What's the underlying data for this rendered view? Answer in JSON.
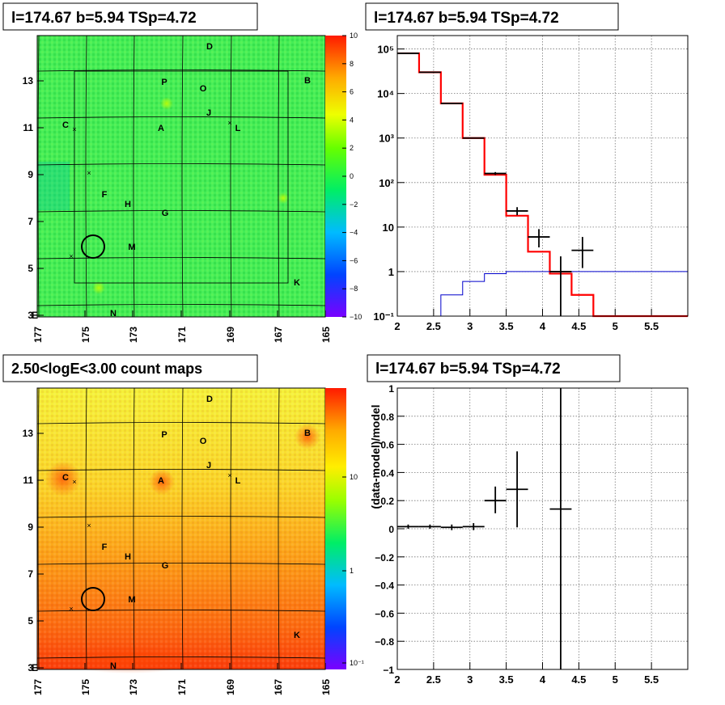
{
  "panels": {
    "tl_title": "l=174.67 b=5.94 TSp=4.72",
    "tr_title": "l=174.67 b=5.94 TSp=4.72",
    "bl_title": "2.50<logE<3.00 count maps",
    "br_title": "l=174.67 b=5.94 TSp=4.72"
  },
  "colors": {
    "data": "#000000",
    "model_total": "#ff0000",
    "model_source": "#0000cc",
    "grid": "#555555"
  },
  "sky_maps": {
    "l_ticks": [
      "177",
      "175",
      "173",
      "171",
      "169",
      "167",
      "165"
    ],
    "b_ticks": [
      "13",
      "11",
      "9",
      "7",
      "5",
      "3"
    ],
    "b_corner_suffix": "E",
    "residual_colorbar_ticks": [
      "10",
      "8",
      "6",
      "4",
      "2",
      "0",
      "−2",
      "−4",
      "−6",
      "−8",
      "−10"
    ],
    "count_colorbar_ticks": [
      "10",
      "1",
      "10⁻¹"
    ],
    "source_labels": [
      "D",
      "B",
      "P",
      "O",
      "J",
      "C",
      "A",
      "L",
      "F",
      "H",
      "G",
      "M",
      "K",
      "N"
    ]
  },
  "chart_data": [
    {
      "type": "line",
      "title": "l=174.67 b=5.94 TSp=4.72",
      "xlabel": "",
      "ylabel": "",
      "xlim": [
        2,
        6
      ],
      "ylim": [
        0.1,
        200000
      ],
      "log_y": true,
      "grid": true,
      "x_tick_labels": [
        "2",
        "2.5",
        "3",
        "3.5",
        "4",
        "4.5",
        "5",
        "5.5"
      ],
      "y_tick_labels": [
        "10⁻¹",
        "1",
        "10",
        "10²",
        "10³",
        "10⁴",
        "10⁵"
      ],
      "series": [
        {
          "style": "step",
          "color": "#ff0000",
          "bin_edges": [
            2.0,
            2.3,
            2.6,
            2.9,
            3.2,
            3.5,
            3.8,
            4.1,
            4.4,
            4.7,
            6.0
          ],
          "values": [
            80000,
            30000,
            6000,
            1000,
            150,
            18,
            2.8,
            0.9,
            0.3,
            0.1
          ]
        },
        {
          "style": "step",
          "color": "#0000cc",
          "bin_edges": [
            2.6,
            2.9,
            3.2,
            3.5,
            3.8,
            4.1,
            4.4,
            6.0
          ],
          "values": [
            0.3,
            0.6,
            0.9,
            1.0,
            1.0,
            1.0,
            1.0
          ]
        },
        {
          "style": "errorbar",
          "color": "#000000",
          "points": [
            {
              "x": 2.15,
              "y": 80000,
              "xerr": 0.15,
              "ylo": 79500,
              "yhi": 80500
            },
            {
              "x": 2.45,
              "y": 30000,
              "xerr": 0.15,
              "ylo": 29700,
              "yhi": 30300
            },
            {
              "x": 2.75,
              "y": 6000,
              "xerr": 0.15,
              "ylo": 5900,
              "yhi": 6100
            },
            {
              "x": 3.05,
              "y": 1000,
              "xerr": 0.15,
              "ylo": 970,
              "yhi": 1030
            },
            {
              "x": 3.35,
              "y": 160,
              "xerr": 0.15,
              "ylo": 148,
              "yhi": 172
            },
            {
              "x": 3.65,
              "y": 23,
              "xerr": 0.15,
              "ylo": 18.5,
              "yhi": 28
            },
            {
              "x": 3.95,
              "y": 6,
              "xerr": 0.15,
              "ylo": 3.5,
              "yhi": 9
            },
            {
              "x": 4.25,
              "y": 1.0,
              "xerr": 0.15,
              "ylo": 0.1,
              "yhi": 2.2
            },
            {
              "x": 4.55,
              "y": 3,
              "xerr": 0.15,
              "ylo": 1.2,
              "yhi": 6
            }
          ]
        }
      ]
    },
    {
      "type": "scatter",
      "title": "l=174.67 b=5.94 TSp=4.72",
      "xlabel": "",
      "ylabel": "(data-model)/model",
      "xlim": [
        2,
        6
      ],
      "ylim": [
        -1,
        1
      ],
      "grid": true,
      "x_tick_labels": [
        "2",
        "2.5",
        "3",
        "3.5",
        "4",
        "4.5",
        "5",
        "5.5"
      ],
      "y_tick_labels": [
        "1",
        "0.8",
        "0.6",
        "0.4",
        "0.2",
        "0",
        "−0.2",
        "−0.4",
        "−0.6",
        "−0.8",
        "−1"
      ],
      "series": [
        {
          "style": "errorbar",
          "color": "#000000",
          "points": [
            {
              "x": 2.15,
              "y": 0.015,
              "xerr": 0.15,
              "ylo": 0.0,
              "yhi": 0.03
            },
            {
              "x": 2.45,
              "y": 0.015,
              "xerr": 0.15,
              "ylo": 0.0,
              "yhi": 0.03
            },
            {
              "x": 2.75,
              "y": 0.01,
              "xerr": 0.15,
              "ylo": -0.01,
              "yhi": 0.03
            },
            {
              "x": 3.05,
              "y": 0.015,
              "xerr": 0.15,
              "ylo": -0.01,
              "yhi": 0.04
            },
            {
              "x": 3.35,
              "y": 0.2,
              "xerr": 0.15,
              "ylo": 0.11,
              "yhi": 0.3
            },
            {
              "x": 3.65,
              "y": 0.28,
              "xerr": 0.15,
              "ylo": 0.01,
              "yhi": 0.55
            },
            {
              "x": 4.25,
              "y": 0.14,
              "xerr": 0.15,
              "ylo": -1.0,
              "yhi": 1.0
            }
          ]
        }
      ]
    }
  ]
}
